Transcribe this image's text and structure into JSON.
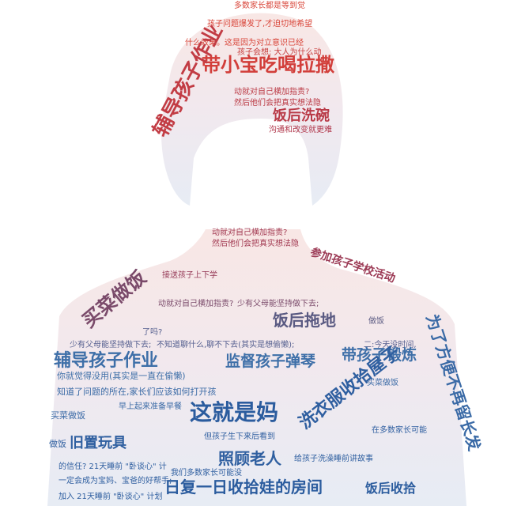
{
  "colors": {
    "top": "#d9463a",
    "upper": "#b0374b",
    "mid": "#8a4a62",
    "lower": "#3e6fa8",
    "bottom": "#2f5fa0"
  },
  "words": {
    "w01": "带小宝吃喝拉撒",
    "w02": "辅导孩子作业",
    "w03": "饭后洗碗",
    "w04": "买菜做饭",
    "w05": "辅导孩子作业",
    "w06": "监督孩子弹琴",
    "w07": "带孩子锻炼",
    "w08": "洗衣服收拾屋子",
    "w09": "这就是妈",
    "w10": "为了方便不再留长发",
    "w11": "照顾老人",
    "w12": "日复一日收拾娃的房间",
    "w13": "饭后收拾",
    "w14": "饭后拖地",
    "w15": "旧置玩具",
    "w16": "参加孩子学校活动",
    "w17": "接送孩子上下学",
    "w18": "动就对自己横加指责?",
    "w19": "然后他们会把真实想法隐",
    "w20": "多数家长都是等到觉",
    "w21": "孩子问题爆发了,才迫切地希望",
    "w22": "什么效果。这是因为对立意识已经",
    "w23": "孩子会想: 大人为什么动",
    "w24": "沟通和改变就更难",
    "w25": "知道了问题的所在,家长们应该如何打开孩",
    "w26": "你就觉得没用(其实是一直在偷懒)",
    "w27": "一定会成为宝妈、宝爸的好帮手;",
    "w28": "加入 21天睡前 \"卧谈心\" 计划",
    "w29": "的信任? 21天睡前 \"卧谈心\" 计",
    "w30": "少有父母能坚持做下去;",
    "w31": "不知道聊什么,聊不下去(其实是想偷懒);",
    "w32": "二:今天没时间,",
    "w33": "给孩子洗澡睡前讲故事",
    "w34": "但孩子生下来后看到",
    "w35": "我们多数家长可能没",
    "w36": "做饭",
    "w37": "买菜做饭",
    "w38": "早上起来准备早餐",
    "w39": "在多数家长可能",
    "w40": "了吗?"
  }
}
